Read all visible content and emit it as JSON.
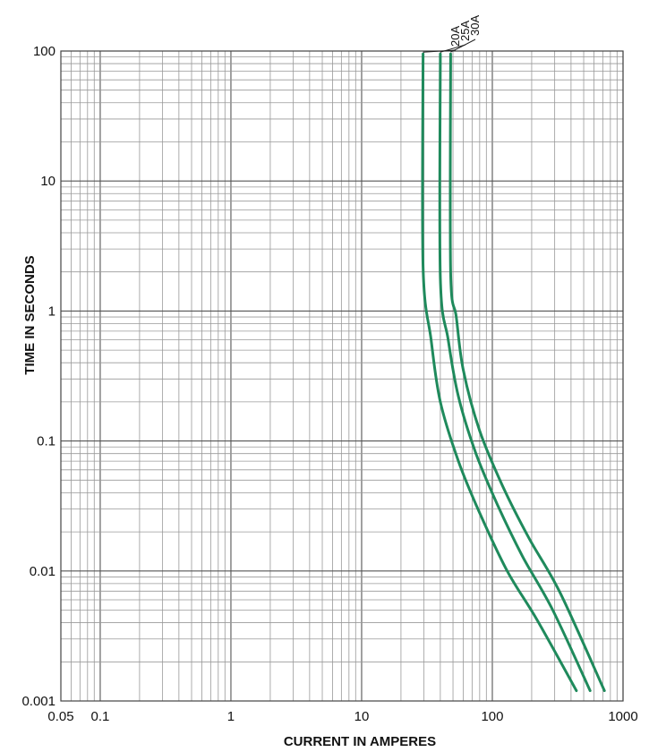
{
  "chart_data": {
    "type": "line",
    "title": "",
    "xlabel": "CURRENT IN AMPERES",
    "ylabel": "TIME IN SECONDS",
    "x_scale": "log",
    "y_scale": "log",
    "xlim": [
      0.05,
      1000
    ],
    "ylim": [
      0.001,
      100
    ],
    "grid": true,
    "x_ticks": [
      {
        "value": 0.05,
        "label": "0.05"
      },
      {
        "value": 0.1,
        "label": "0.1"
      },
      {
        "value": 1,
        "label": "1"
      },
      {
        "value": 10,
        "label": "10"
      },
      {
        "value": 100,
        "label": "100"
      },
      {
        "value": 1000,
        "label": "1000"
      }
    ],
    "y_ticks": [
      {
        "value": 0.001,
        "label": "0.001"
      },
      {
        "value": 0.01,
        "label": "0.01"
      },
      {
        "value": 0.1,
        "label": "0.1"
      },
      {
        "value": 1,
        "label": "1"
      },
      {
        "value": 10,
        "label": "10"
      },
      {
        "value": 100,
        "label": "100"
      }
    ],
    "line_color": "#1f8a5c",
    "series": [
      {
        "name": "20A",
        "points": [
          [
            29.5,
            95
          ],
          [
            29.5,
            2.2
          ],
          [
            34,
            0.6
          ],
          [
            40,
            0.2
          ],
          [
            55,
            0.07
          ],
          [
            80,
            0.028
          ],
          [
            130,
            0.01
          ],
          [
            220,
            0.0042
          ],
          [
            440,
            0.0012
          ]
        ]
      },
      {
        "name": "25A",
        "points": [
          [
            40,
            95
          ],
          [
            40,
            1.8
          ],
          [
            46,
            0.6
          ],
          [
            55,
            0.22
          ],
          [
            75,
            0.08
          ],
          [
            110,
            0.032
          ],
          [
            170,
            0.013
          ],
          [
            290,
            0.005
          ],
          [
            560,
            0.0012
          ]
        ]
      },
      {
        "name": "30A",
        "points": [
          [
            48,
            95
          ],
          [
            48,
            2.0
          ],
          [
            53,
            0.9
          ],
          [
            60,
            0.35
          ],
          [
            80,
            0.12
          ],
          [
            120,
            0.045
          ],
          [
            190,
            0.018
          ],
          [
            330,
            0.0068
          ],
          [
            720,
            0.0012
          ]
        ]
      }
    ]
  }
}
